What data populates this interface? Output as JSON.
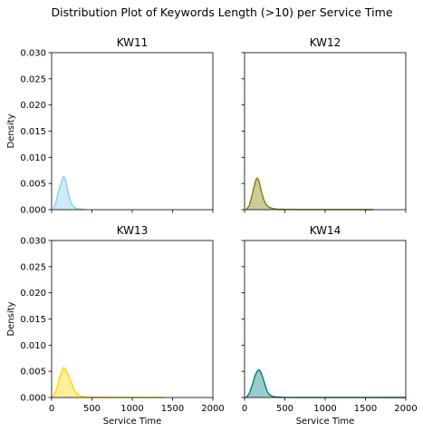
{
  "title": "Distribution Plot of Keywords Length (>10) per Service Time",
  "chart_data": {
    "type": "area",
    "title": "Distribution Plot of Keywords Length (>10) per Service Time",
    "xlabel": "Service Time",
    "ylabel": "Density",
    "xlim": [
      0,
      2000
    ],
    "ylim": [
      0,
      0.03
    ],
    "xticks": [
      "0",
      "500",
      "1000",
      "1500",
      "2000"
    ],
    "yticks": [
      "0.000",
      "0.005",
      "0.010",
      "0.015",
      "0.020",
      "0.025",
      "0.030"
    ],
    "grid": false,
    "layout": "2x2 shared axes",
    "panels": [
      {
        "name": "KW11",
        "color": "#87ceeb",
        "x": [
          20,
          50,
          80,
          110,
          130,
          150,
          170,
          190,
          210,
          240,
          270,
          300,
          340,
          380,
          420
        ],
        "y": [
          0.0002,
          0.0012,
          0.0032,
          0.0046,
          0.0058,
          0.0063,
          0.0058,
          0.0044,
          0.0028,
          0.0013,
          0.0006,
          0.0003,
          0.0001,
          5e-05,
          0.0
        ]
      },
      {
        "name": "KW12",
        "color": "#808000",
        "x": [
          20,
          60,
          100,
          130,
          150,
          170,
          190,
          210,
          240,
          270,
          300,
          350,
          400,
          500,
          700,
          1000,
          1300,
          1600
        ],
        "y": [
          0.0,
          0.0008,
          0.0032,
          0.0052,
          0.006,
          0.0058,
          0.0048,
          0.0034,
          0.0018,
          0.0009,
          0.0005,
          0.0002,
          0.0001,
          5e-05,
          2e-05,
          1e-05,
          1e-05,
          0.0
        ]
      },
      {
        "name": "KW13",
        "color": "#ffd700",
        "x": [
          20,
          60,
          100,
          130,
          150,
          170,
          190,
          210,
          230,
          260,
          290,
          330,
          380,
          450,
          600,
          800,
          1000,
          1200,
          1400
        ],
        "y": [
          0.0002,
          0.0015,
          0.0038,
          0.0052,
          0.0057,
          0.0054,
          0.0048,
          0.0042,
          0.0034,
          0.0022,
          0.0011,
          0.0005,
          0.0002,
          0.0001,
          5e-05,
          3e-05,
          2e-05,
          1e-05,
          0.0
        ]
      },
      {
        "name": "KW14",
        "color": "#008080",
        "x": [
          20,
          60,
          100,
          130,
          160,
          180,
          200,
          220,
          250,
          280,
          310,
          350,
          400,
          500,
          700,
          1000,
          1500,
          2000
        ],
        "y": [
          0.0,
          0.0008,
          0.0026,
          0.0042,
          0.0051,
          0.0053,
          0.0049,
          0.0041,
          0.0026,
          0.0012,
          0.0005,
          0.0002,
          0.0001,
          4e-05,
          2e-05,
          1e-05,
          1e-05,
          0.0
        ]
      }
    ]
  }
}
